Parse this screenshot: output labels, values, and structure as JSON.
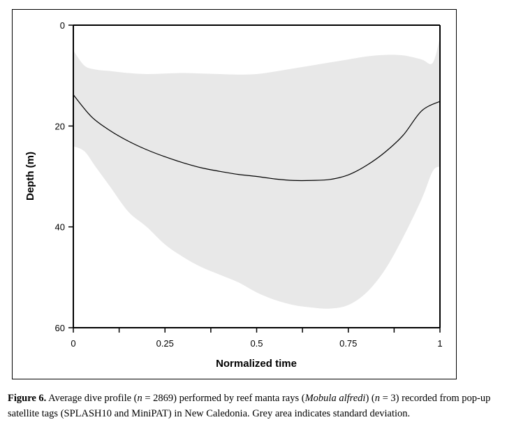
{
  "chart_data": {
    "type": "area",
    "xlabel": "Normalized time",
    "ylabel": "Depth (m)",
    "xlim": [
      0,
      1
    ],
    "ylim": [
      0,
      60
    ],
    "y_inverted": true,
    "grid": false,
    "xticks": [
      0,
      0.25,
      0.5,
      0.75,
      1
    ],
    "xtick_labels": [
      "0",
      "0.25",
      "0.5",
      "0.75",
      "1"
    ],
    "xminor_ticks": [
      0.125,
      0.375,
      0.625,
      0.875
    ],
    "yticks": [
      0,
      20,
      40,
      60
    ],
    "ytick_labels": [
      "0",
      "20",
      "40",
      "60"
    ],
    "colors": {
      "band": "#e8e8e8",
      "line": "#000000"
    },
    "mean": {
      "x": [
        0,
        0.05,
        0.1,
        0.15,
        0.2,
        0.25,
        0.3,
        0.35,
        0.4,
        0.45,
        0.5,
        0.55,
        0.6,
        0.65,
        0.7,
        0.75,
        0.8,
        0.85,
        0.9,
        0.95,
        1
      ],
      "y": [
        13.8,
        18.2,
        20.9,
        23.0,
        24.7,
        26.1,
        27.3,
        28.3,
        29.0,
        29.6,
        30.0,
        30.5,
        30.8,
        30.8,
        30.6,
        29.7,
        27.8,
        25.2,
        21.8,
        17.0,
        15.1
      ]
    },
    "sd_upper": {
      "x": [
        0,
        0.03,
        0.06,
        0.1,
        0.15,
        0.2,
        0.25,
        0.3,
        0.35,
        0.4,
        0.45,
        0.5,
        0.55,
        0.6,
        0.65,
        0.7,
        0.75,
        0.8,
        0.85,
        0.9,
        0.95,
        0.98,
        1
      ],
      "y": [
        5.0,
        8.0,
        8.8,
        9.1,
        9.5,
        9.7,
        9.6,
        9.5,
        9.6,
        9.7,
        9.8,
        9.7,
        9.2,
        8.6,
        8.0,
        7.4,
        6.8,
        6.2,
        5.9,
        6.0,
        6.8,
        7.5,
        2.5
      ]
    },
    "sd_lower": {
      "x": [
        0,
        0.03,
        0.06,
        0.1,
        0.15,
        0.2,
        0.25,
        0.3,
        0.35,
        0.4,
        0.45,
        0.5,
        0.55,
        0.6,
        0.65,
        0.7,
        0.75,
        0.8,
        0.85,
        0.9,
        0.95,
        0.98,
        1
      ],
      "y": [
        24.0,
        25.0,
        28.0,
        32.0,
        37.0,
        40.0,
        43.5,
        46.0,
        48.0,
        49.5,
        51.0,
        53.0,
        54.5,
        55.5,
        56.0,
        56.2,
        55.5,
        53.0,
        48.5,
        42.0,
        34.5,
        29.0,
        28.0
      ]
    }
  },
  "caption": {
    "label": "Figure 6.",
    "text_1": " Average dive profile (",
    "n_sym_1": "n",
    "text_2": " = 2869) performed by reef manta rays (",
    "species": "Mobula alfredi",
    "text_3": ") (",
    "n_sym_2": "n",
    "text_4": " = 3) recorded from pop-up satellite tags (SPLASH10 and MiniPAT) in New Caledonia. Grey area indicates standard deviation."
  }
}
